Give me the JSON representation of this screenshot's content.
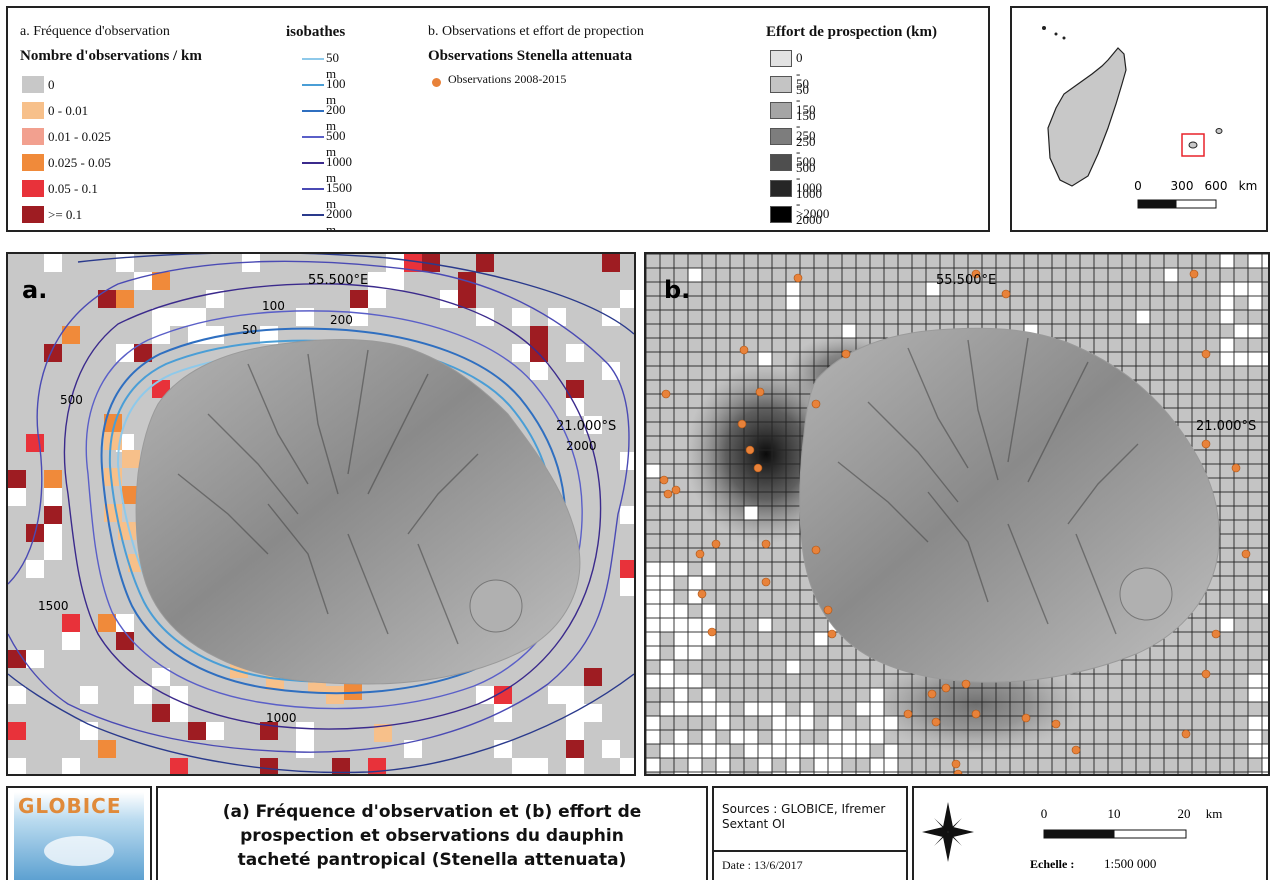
{
  "legend_a": {
    "heading": "a. Fréquence d'observation",
    "subheading": "Nombre d'observations / km",
    "classes": [
      {
        "label": "0",
        "color": "#c8c8c8"
      },
      {
        "label": "0 - 0.01",
        "color": "#f7c08a"
      },
      {
        "label": "0.01 - 0.025",
        "color": "#f2a08f"
      },
      {
        "label": "0.025 - 0.05",
        "color": "#f08a3a"
      },
      {
        "label": "0.05 - 0.1",
        "color": "#e8323a"
      },
      {
        "label": ">= 0.1",
        "color": "#9e1c22"
      }
    ]
  },
  "isobaths": {
    "heading": "isobathes",
    "items": [
      {
        "label": "50 m",
        "color": "#8ec9ea"
      },
      {
        "label": "100 m",
        "color": "#4a9ed6"
      },
      {
        "label": "200 m",
        "color": "#2f6fc0"
      },
      {
        "label": "500 m",
        "color": "#5a5fc8"
      },
      {
        "label": "1000 m",
        "color": "#3b2a8c"
      },
      {
        "label": "1500 m",
        "color": "#4a4ab4"
      },
      {
        "label": "2000 m",
        "color": "#2a3a8c"
      }
    ]
  },
  "legend_b": {
    "heading": "b. Observations et effort de propection",
    "subheading": "Observations Stenella attenuata",
    "obs_label": "Observations 2008-2015",
    "obs_color": "#e8823a"
  },
  "effort": {
    "heading": "Effort de prospection (km)",
    "classes": [
      {
        "label": "0 - 50",
        "color": "#e2e2e2"
      },
      {
        "label": "50 - 150",
        "color": "#c4c4c4"
      },
      {
        "label": "150 - 250",
        "color": "#a5a5a5"
      },
      {
        "label": "250 - 500",
        "color": "#7d7d7d"
      },
      {
        "label": "500 - 1000",
        "color": "#4e4e4e"
      },
      {
        "label": "1000 - 2000",
        "color": "#262626"
      },
      {
        "label": ">2000",
        "color": "#000000"
      }
    ]
  },
  "inset": {
    "scale_labels": [
      "0",
      "300",
      "600",
      "km"
    ]
  },
  "map_a": {
    "panel_label": "a.",
    "lon_label": "55.500°E",
    "lat_label": "21.000°S",
    "contour_labels": [
      "100",
      "50",
      "200",
      "500",
      "2000",
      "1500",
      "1000"
    ]
  },
  "map_b": {
    "panel_label": "b.",
    "lon_label": "55.500°E",
    "lat_label": "21.000°S"
  },
  "footer": {
    "logo_text": "GLOBICE",
    "title_lines": [
      "(a) Fréquence d'observation et (b) effort de",
      "prospection et observations du dauphin",
      "tacheté pantropical (Stenella attenuata)"
    ],
    "sources": "Sources : GLOBICE, Ifremer Sextant OI",
    "date": "Date : 13/6/2017",
    "scale_labels": [
      "0",
      "10",
      "20",
      "km"
    ],
    "scale_label": "Echelle :",
    "scale_value": "1:500 000"
  }
}
